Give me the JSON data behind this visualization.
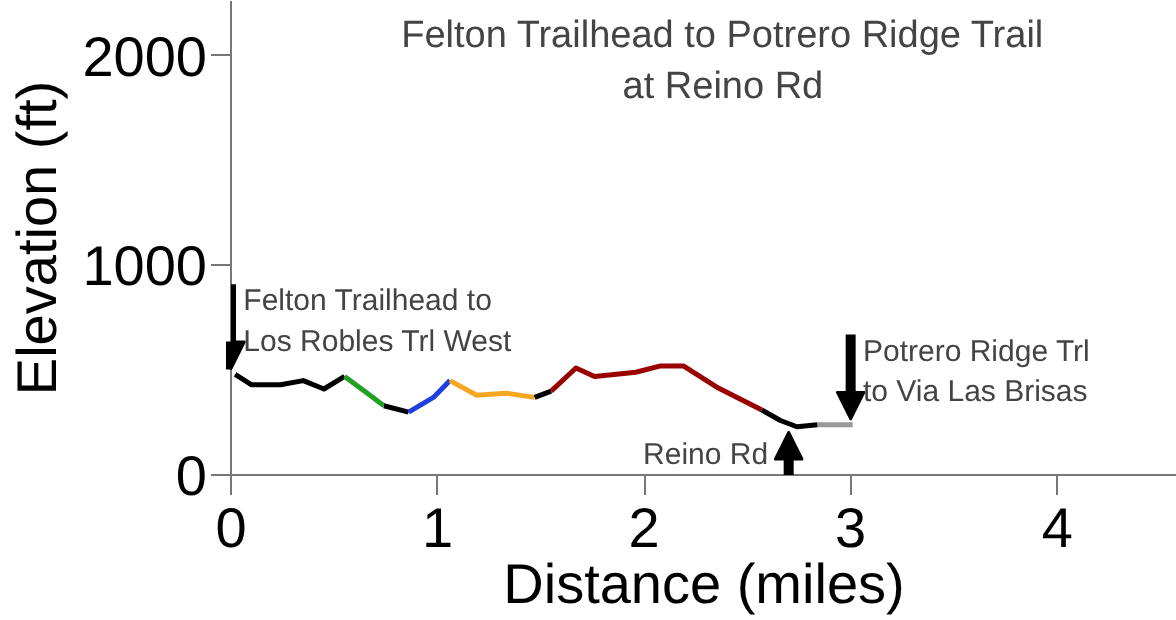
{
  "chart_data": {
    "type": "line",
    "title": "Felton Trailhead to Potrero Ridge Trail\nat Reino Rd",
    "xlabel": "Distance (miles)",
    "ylabel": "Elevation (ft)",
    "xlim": [
      0,
      4.58
    ],
    "ylim": [
      0,
      2260
    ],
    "xticks": [
      0,
      1,
      2,
      3,
      4
    ],
    "yticks": [
      0,
      1000,
      2000
    ],
    "grid": false,
    "marker": "none",
    "line_style": "solid",
    "series": [
      {
        "color": "#000000",
        "x": [
          0.02,
          0.1,
          0.24,
          0.35,
          0.45,
          0.55
        ],
        "values": [
          480,
          430,
          430,
          450,
          410,
          470
        ]
      },
      {
        "color": "#22a022",
        "x": [
          0.55,
          0.66,
          0.74
        ],
        "values": [
          470,
          390,
          330
        ]
      },
      {
        "color": "#000000",
        "x": [
          0.74,
          0.86
        ],
        "values": [
          330,
          300
        ]
      },
      {
        "color": "#1f3fdf",
        "x": [
          0.86,
          0.98,
          1.06
        ],
        "values": [
          300,
          370,
          450
        ]
      },
      {
        "color": "#f5a623",
        "x": [
          1.06,
          1.19,
          1.33,
          1.47
        ],
        "values": [
          450,
          380,
          390,
          370
        ]
      },
      {
        "color": "#000000",
        "x": [
          1.47,
          1.55
        ],
        "values": [
          370,
          400
        ]
      },
      {
        "color": "#990000",
        "x": [
          1.55,
          1.67,
          1.76,
          1.96,
          2.08,
          2.19,
          2.35,
          2.57
        ],
        "values": [
          400,
          510,
          470,
          490,
          520,
          520,
          420,
          310
        ]
      },
      {
        "color": "#000000",
        "x": [
          2.57,
          2.66,
          2.74,
          2.84
        ],
        "values": [
          310,
          260,
          230,
          240
        ]
      },
      {
        "color": "#999999",
        "x": [
          2.84,
          3.01
        ],
        "values": [
          240,
          240
        ]
      }
    ],
    "annotations": [
      {
        "text": "Felton Trailhead to\nLos Robles Trl West",
        "x": 0,
        "y": 480
      },
      {
        "text": "Reino Rd",
        "x": 2.7,
        "y": 230
      },
      {
        "text": "Potrero Ridge Trl\nto Via Las Brisas",
        "x": 3.0,
        "y": 240
      }
    ]
  }
}
